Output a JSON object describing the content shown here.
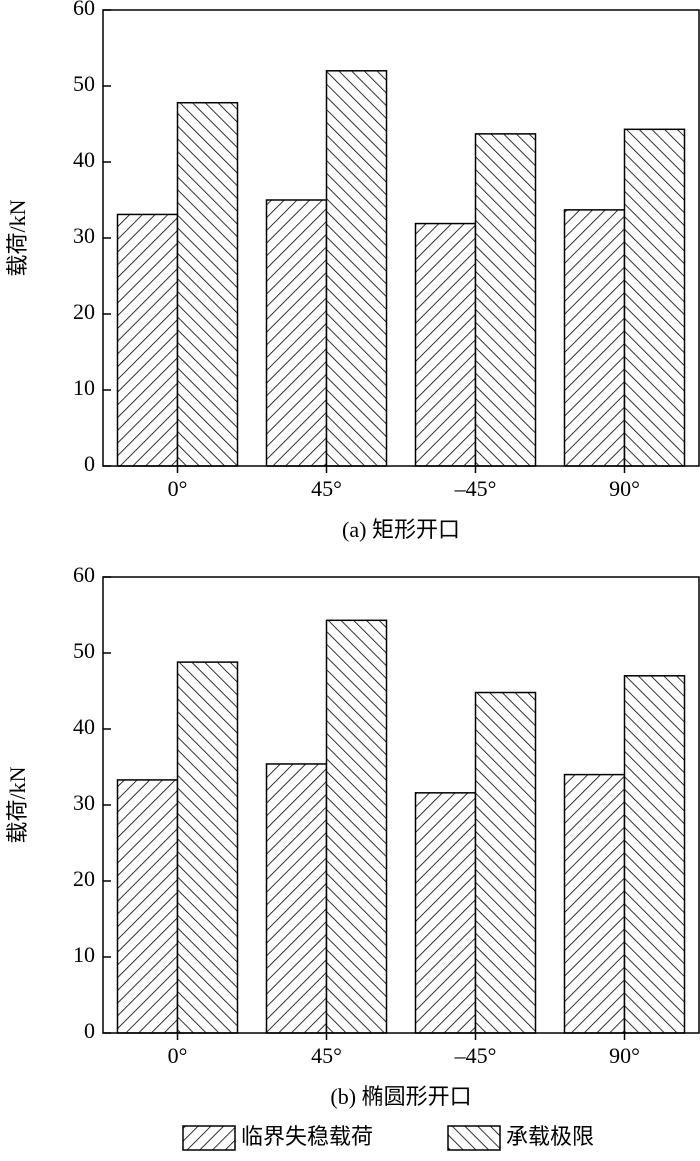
{
  "chart_data": [
    {
      "type": "bar",
      "ylabel": "载荷/kN",
      "caption": "(a) 矩形开口",
      "categories": [
        "0°",
        "45°",
        "–45°",
        "90°"
      ],
      "series": [
        {
          "name": "临界失稳载荷",
          "color": "#000000",
          "hatch": "\\",
          "values": [
            33.1,
            35.0,
            31.9,
            33.7
          ]
        },
        {
          "name": "承载极限",
          "color": "#000000",
          "hatch": "/",
          "values": [
            47.8,
            52.0,
            43.7,
            44.3
          ]
        }
      ],
      "ylim": [
        0,
        60
      ],
      "yticks": [
        0,
        10,
        20,
        30,
        40,
        50,
        60
      ]
    },
    {
      "type": "bar",
      "ylabel": "载荷/kN",
      "caption": "(b) 椭圆形开口",
      "categories": [
        "0°",
        "45°",
        "–45°",
        "90°"
      ],
      "series": [
        {
          "name": "临界失稳载荷",
          "color": "#000000",
          "hatch": "\\",
          "values": [
            33.3,
            35.4,
            31.6,
            34.0
          ]
        },
        {
          "name": "承载极限",
          "color": "#000000",
          "hatch": "/",
          "values": [
            48.8,
            54.3,
            44.8,
            47.0
          ]
        }
      ],
      "ylim": [
        0,
        60
      ],
      "yticks": [
        0,
        10,
        20,
        30,
        40,
        50,
        60
      ]
    }
  ]
}
